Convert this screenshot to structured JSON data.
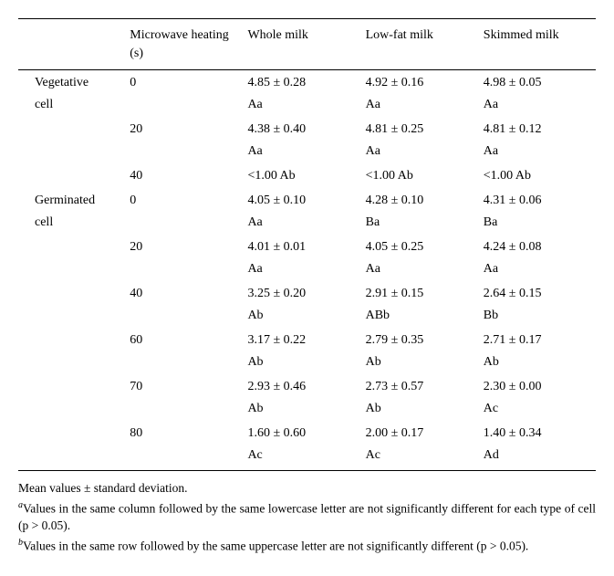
{
  "columns": {
    "cell": "",
    "heating": "Microwave heating (s)",
    "whole": "Whole milk",
    "lowfat": "Low-fat milk",
    "skimmed": "Skimmed milk"
  },
  "groups": [
    {
      "label1": "Vegetative",
      "label2": "cell",
      "rows": [
        {
          "heat": "0",
          "whole_v": "4.85 ± 0.28",
          "whole_s": "Aa",
          "low_v": "4.92 ± 0.16",
          "low_s": "Aa",
          "skim_v": "4.98 ± 0.05",
          "skim_s": "Aa"
        },
        {
          "heat": "20",
          "whole_v": "4.38 ± 0.40",
          "whole_s": "Aa",
          "low_v": "4.81 ± 0.25",
          "low_s": "Aa",
          "skim_v": "4.81 ± 0.12",
          "skim_s": "Aa"
        },
        {
          "heat": "40",
          "whole_v": "<1.00 Ab",
          "whole_s": "",
          "low_v": "<1.00 Ab",
          "low_s": "",
          "skim_v": "<1.00 Ab",
          "skim_s": ""
        }
      ]
    },
    {
      "label1": "Germinated",
      "label2": "cell",
      "rows": [
        {
          "heat": "0",
          "whole_v": "4.05 ± 0.10",
          "whole_s": "Aa",
          "low_v": "4.28 ± 0.10",
          "low_s": "Ba",
          "skim_v": "4.31 ± 0.06",
          "skim_s": "Ba"
        },
        {
          "heat": "20",
          "whole_v": "4.01 ± 0.01",
          "whole_s": "Aa",
          "low_v": "4.05 ± 0.25",
          "low_s": "Aa",
          "skim_v": "4.24 ± 0.08",
          "skim_s": "Aa"
        },
        {
          "heat": "40",
          "whole_v": "3.25 ± 0.20",
          "whole_s": "Ab",
          "low_v": "2.91 ± 0.15",
          "low_s": "ABb",
          "skim_v": "2.64 ± 0.15",
          "skim_s": "Bb"
        },
        {
          "heat": "60",
          "whole_v": "3.17 ± 0.22",
          "whole_s": "Ab",
          "low_v": "2.79 ± 0.35",
          "low_s": "Ab",
          "skim_v": "2.71 ± 0.17",
          "skim_s": "Ab"
        },
        {
          "heat": "70",
          "whole_v": "2.93 ± 0.46",
          "whole_s": "Ab",
          "low_v": "2.73 ± 0.57",
          "low_s": "Ab",
          "skim_v": "2.30 ± 0.00",
          "skim_s": "Ac"
        },
        {
          "heat": "80",
          "whole_v": "1.60 ± 0.60",
          "whole_s": "Ac",
          "low_v": "2.00 ± 0.17",
          "low_s": "Ac",
          "skim_v": "1.40 ± 0.34",
          "skim_s": "Ad"
        }
      ]
    }
  ],
  "footnotes": {
    "line1": "Mean values ± standard deviation.",
    "a_sup": "a",
    "a_text": "Values in the same column followed by the same lowercase letter are not significantly different for each type of cell (p > 0.05).",
    "b_sup": "b",
    "b_text": "Values in the same row followed by the same uppercase letter are not significantly different (p > 0.05)."
  },
  "style": {
    "font_body": 14,
    "font_footnote": 13.5,
    "border_color": "#000000",
    "background": "#ffffff",
    "text_color": "#000000"
  }
}
